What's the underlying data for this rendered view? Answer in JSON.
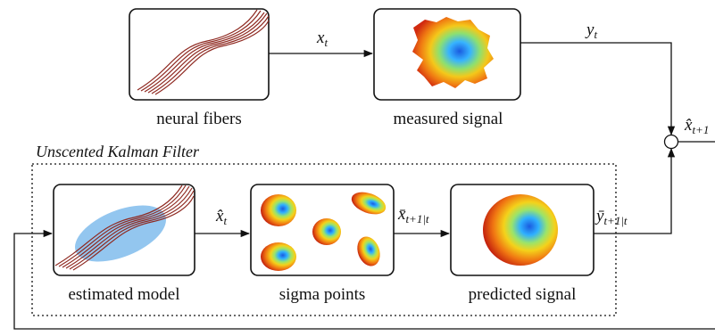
{
  "diagram": {
    "title": "Unscented Kalman Filter",
    "blocks": {
      "neural_fibers": "neural fibers",
      "measured_signal": "measured signal",
      "estimated_model": "estimated model",
      "sigma_points": "sigma points",
      "predicted_signal": "predicted signal"
    },
    "edges": {
      "x_t": {
        "base": "x",
        "sub": "t"
      },
      "y_t": {
        "base": "y",
        "sub": "t"
      },
      "xhat_t": {
        "base": "x̂",
        "sub": "t"
      },
      "xbar_pred": {
        "base": "x̄",
        "sub": "t+1|t"
      },
      "ybar_pred": {
        "base": "ȳ",
        "sub": "t+1|t"
      },
      "xhat_next": {
        "base": "x̂",
        "sub": "t+1"
      }
    },
    "colors": {
      "fiber": "#8f2a22",
      "ellipse": "#6fb3ea",
      "signal_outer": "#d12a10",
      "signal_mid": "#f4c81a",
      "signal_inner": "#1a5be0"
    }
  }
}
